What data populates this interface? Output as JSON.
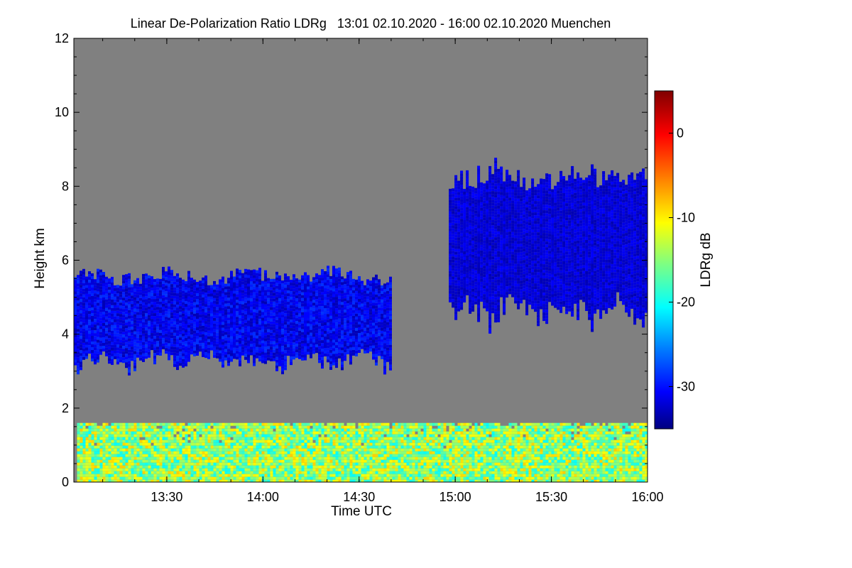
{
  "chart_data": {
    "type": "heatmap",
    "title": "Linear De-Polarization Ratio LDRg   13:01 02.10.2020 - 16:00 02.10.2020 Muenchen",
    "xlabel": "Time UTC",
    "ylabel": "Height km",
    "xlim": [
      "13:01",
      "16:00"
    ],
    "ylim": [
      0,
      12
    ],
    "x_ticks": [
      "13:30",
      "14:00",
      "14:30",
      "15:00",
      "15:30",
      "16:00"
    ],
    "y_ticks": [
      "0",
      "2",
      "4",
      "6",
      "8",
      "10",
      "12"
    ],
    "background_color": "#808080",
    "colorbar": {
      "label": "LDRg dB",
      "range": [
        -35,
        5
      ],
      "ticks": [
        "0",
        "-10",
        "-20",
        "-30"
      ],
      "colormap": [
        "#000080",
        "#0000ff",
        "#0080ff",
        "#00ffff",
        "#80ff80",
        "#ffff00",
        "#ff8000",
        "#ff0000",
        "#800000"
      ]
    },
    "regions": [
      {
        "feature": "low-level aerosol layer",
        "time_start": "13:02",
        "time_end": "16:00",
        "height_bottom_km": 0.0,
        "height_top_km": 1.6,
        "ldr_db_range": [
          -20,
          -8
        ]
      },
      {
        "feature": "mid-level cloud",
        "time_start": "13:01",
        "time_end": "14:40",
        "height_bottom_km": 2.9,
        "height_top_km": 5.9,
        "ldr_db_range": [
          -33,
          -28
        ]
      },
      {
        "feature": "upper cloud",
        "time_start": "14:58",
        "time_end": "16:00",
        "height_bottom_km": 4.0,
        "height_top_km": 8.8,
        "ldr_db_range": [
          -33,
          -30
        ]
      }
    ]
  }
}
